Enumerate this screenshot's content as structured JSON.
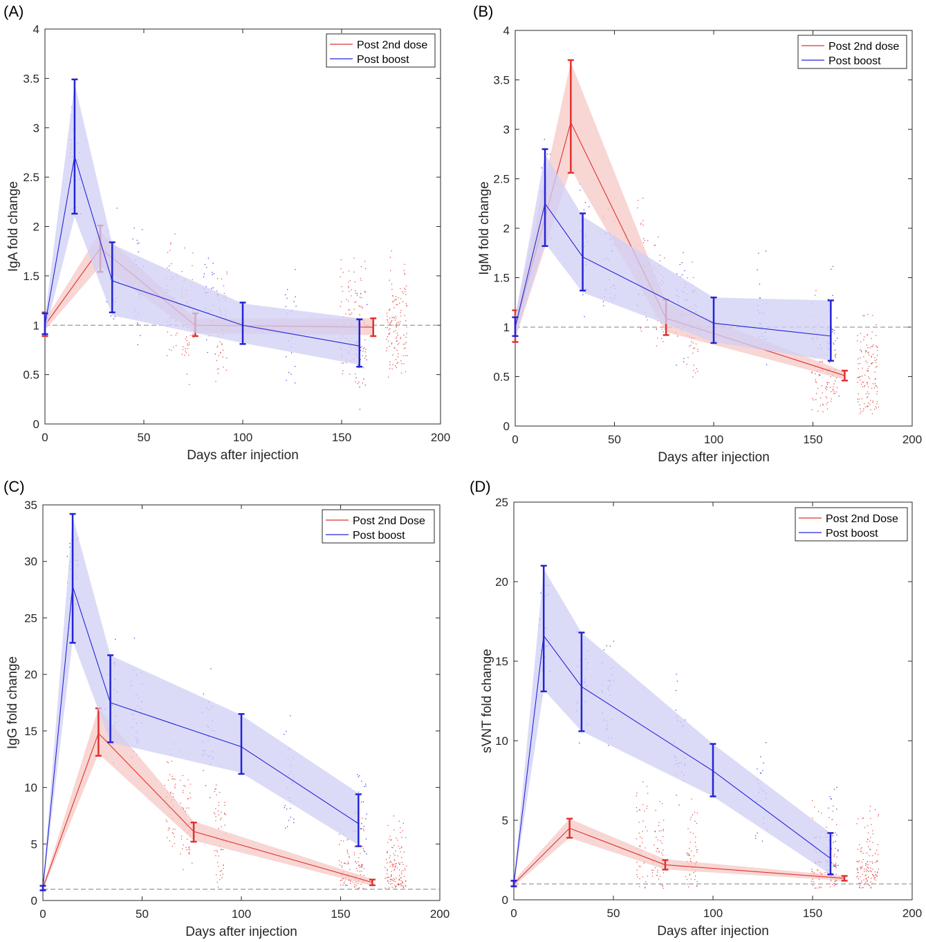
{
  "colors": {
    "post2": "#e0312f",
    "boost": "#2323d6",
    "post2_band": "#f6c8c4",
    "boost_band": "#cfcff5",
    "reference": "#9a9a9a"
  },
  "chart_data": [
    {
      "type": "line",
      "panel_label": "(A)",
      "xlabel": "Days after injection",
      "ylabel": "IgA fold change",
      "xlim": [
        0,
        200
      ],
      "ylim": [
        0,
        4
      ],
      "xticks": [
        "0",
        "50",
        "100",
        "150",
        "200"
      ],
      "yticks": [
        "0",
        "0.5",
        "1",
        "1.5",
        "2",
        "2.5",
        "3",
        "3.5",
        "4"
      ],
      "reference_line": 1,
      "legend": [
        "Post 2nd dose",
        "Post boost"
      ],
      "legend_position": "top-right",
      "series": [
        {
          "name": "Post 2nd dose",
          "color": "post2",
          "x": [
            0,
            28,
            76,
            166
          ],
          "y": [
            1.0,
            1.78,
            1.0,
            0.98
          ],
          "err_low": [
            0.89,
            1.54,
            0.89,
            0.89
          ],
          "err_high": [
            1.13,
            2.01,
            1.12,
            1.07
          ],
          "band_low": [
            0.95,
            1.6,
            0.92,
            0.9
          ],
          "band_high": [
            1.05,
            1.95,
            1.07,
            1.07
          ]
        },
        {
          "name": "Post boost",
          "color": "boost",
          "x": [
            0,
            15,
            34,
            100,
            159
          ],
          "y": [
            1.0,
            2.71,
            1.45,
            1.0,
            0.79
          ],
          "err_low": [
            0.91,
            2.13,
            1.13,
            0.81,
            0.58
          ],
          "err_high": [
            1.12,
            3.49,
            1.84,
            1.23,
            1.06
          ],
          "band_low": [
            0.92,
            2.1,
            1.1,
            0.82,
            0.6
          ],
          "band_high": [
            1.08,
            3.45,
            1.82,
            1.22,
            1.07
          ]
        }
      ]
    },
    {
      "type": "line",
      "panel_label": "(B)",
      "xlabel": "Days after injection",
      "ylabel": "IgM fold change",
      "xlim": [
        0,
        200
      ],
      "ylim": [
        0,
        4
      ],
      "xticks": [
        "0",
        "50",
        "100",
        "150",
        "200"
      ],
      "yticks": [
        "0",
        "0.5",
        "1",
        "1.5",
        "2",
        "2.5",
        "3",
        "3.5",
        "4"
      ],
      "reference_line": 1,
      "legend": [
        "Post 2nd dose",
        "Post boost"
      ],
      "legend_position": "top-right",
      "series": [
        {
          "name": "Post 2nd dose",
          "color": "post2",
          "x": [
            0,
            28,
            76,
            166
          ],
          "y": [
            1.0,
            3.07,
            1.09,
            0.51
          ],
          "err_low": [
            0.85,
            2.56,
            0.92,
            0.46
          ],
          "err_high": [
            1.17,
            3.7,
            1.28,
            0.56
          ],
          "band_low": [
            0.88,
            2.6,
            0.95,
            0.47
          ],
          "band_high": [
            1.12,
            3.68,
            1.25,
            0.55
          ]
        },
        {
          "name": "Post boost",
          "color": "boost",
          "x": [
            0,
            15,
            34,
            100,
            159
          ],
          "y": [
            1.0,
            2.25,
            1.71,
            1.04,
            0.91
          ],
          "err_low": [
            0.91,
            1.82,
            1.37,
            0.84,
            0.66
          ],
          "err_high": [
            1.1,
            2.8,
            2.15,
            1.3,
            1.27
          ],
          "band_low": [
            0.9,
            1.85,
            1.35,
            0.85,
            0.66
          ],
          "band_high": [
            1.1,
            2.75,
            2.12,
            1.3,
            1.27
          ]
        }
      ]
    },
    {
      "type": "line",
      "panel_label": "(C)",
      "xlabel": "Days after injection",
      "ylabel": "IgG fold change",
      "xlim": [
        0,
        200
      ],
      "ylim": [
        0,
        35
      ],
      "xticks": [
        "0",
        "50",
        "100",
        "150",
        "200"
      ],
      "yticks": [
        "0",
        "5",
        "10",
        "15",
        "20",
        "25",
        "30",
        "35"
      ],
      "reference_line": 1,
      "legend": [
        "Post 2nd Dose",
        "Post boost"
      ],
      "legend_position": "top-right",
      "series": [
        {
          "name": "Post 2nd Dose",
          "color": "post2",
          "x": [
            0,
            28,
            76,
            166
          ],
          "y": [
            1.1,
            14.8,
            6.1,
            1.6
          ],
          "err_low": [
            0.9,
            12.8,
            5.2,
            1.35
          ],
          "err_high": [
            1.3,
            17.0,
            6.9,
            1.85
          ],
          "band_low": [
            0.9,
            13.0,
            5.3,
            1.3
          ],
          "band_high": [
            1.3,
            17.0,
            7.0,
            1.9
          ]
        },
        {
          "name": "Post boost",
          "color": "boost",
          "x": [
            0,
            15,
            34,
            100,
            159
          ],
          "y": [
            1.1,
            27.8,
            17.5,
            13.6,
            6.8
          ],
          "err_low": [
            0.9,
            22.8,
            14.0,
            11.2,
            4.8
          ],
          "err_high": [
            1.3,
            34.2,
            21.7,
            16.5,
            9.4
          ],
          "band_low": [
            0.9,
            23.0,
            14.0,
            11.3,
            4.9
          ],
          "band_high": [
            1.3,
            34.0,
            21.7,
            16.4,
            9.5
          ]
        }
      ]
    },
    {
      "type": "line",
      "panel_label": "(D)",
      "xlabel": "Days after injection",
      "ylabel": "sVNT fold change",
      "xlim": [
        0,
        200
      ],
      "ylim": [
        0,
        25
      ],
      "xticks": [
        "0",
        "50",
        "100",
        "150",
        "200"
      ],
      "yticks": [
        "0",
        "5",
        "10",
        "15",
        "20",
        "25"
      ],
      "reference_line": 1,
      "legend": [
        "Post 2nd Dose",
        "Post boost"
      ],
      "legend_position": "top-right",
      "series": [
        {
          "name": "Post 2nd Dose",
          "color": "post2",
          "x": [
            0,
            28,
            76,
            166
          ],
          "y": [
            1.0,
            4.5,
            2.2,
            1.35
          ],
          "err_low": [
            0.85,
            3.9,
            1.9,
            1.2
          ],
          "err_high": [
            1.2,
            5.1,
            2.5,
            1.5
          ],
          "band_low": [
            0.85,
            3.9,
            1.9,
            1.2
          ],
          "band_high": [
            1.2,
            5.1,
            2.55,
            1.5
          ]
        },
        {
          "name": "Post boost",
          "color": "boost",
          "x": [
            0,
            15,
            34,
            100,
            159
          ],
          "y": [
            1.0,
            16.6,
            13.4,
            8.1,
            2.6
          ],
          "err_low": [
            0.85,
            13.1,
            10.6,
            6.5,
            1.6
          ],
          "err_high": [
            1.2,
            21.0,
            16.8,
            9.8,
            4.2
          ],
          "band_low": [
            0.85,
            13.2,
            10.6,
            6.5,
            1.6
          ],
          "band_high": [
            1.2,
            20.8,
            16.8,
            9.8,
            4.2
          ]
        }
      ]
    }
  ]
}
